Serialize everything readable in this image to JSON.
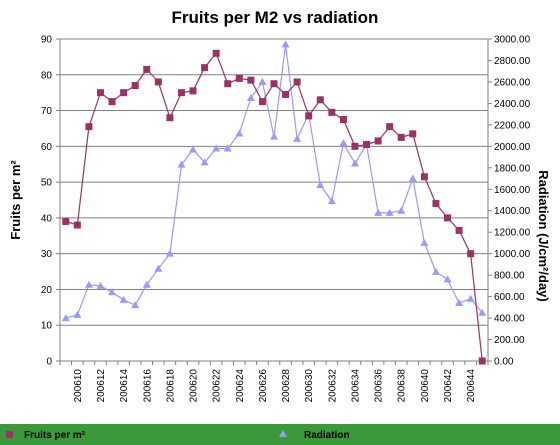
{
  "chart_data": {
    "type": "line",
    "title": "Fruits per M2 vs radiation",
    "ylabel": "Fruits per m²",
    "y2label": "Radiation (J/cm²/day)",
    "ylim": [
      0,
      90
    ],
    "y2lim": [
      0,
      3000
    ],
    "yticks": [
      "0",
      "10",
      "20",
      "30",
      "40",
      "50",
      "60",
      "70",
      "80",
      "90"
    ],
    "y2ticks": [
      "0.00",
      "200.00",
      "400.00",
      "600.00",
      "800.00",
      "1000.00",
      "1200.00",
      "1400.00",
      "1600.00",
      "1800.00",
      "2000.00",
      "2200.00",
      "2400.00",
      "2600.00",
      "2800.00",
      "3000.00"
    ],
    "x": [
      "200609",
      "200610",
      "200611",
      "200612",
      "200613",
      "200614",
      "200615",
      "200616",
      "200617",
      "200618",
      "200619",
      "200620",
      "200621",
      "200622",
      "200623",
      "200624",
      "200625",
      "200626",
      "200627",
      "200628",
      "200629",
      "200630",
      "200631",
      "200632",
      "200633",
      "200634",
      "200635",
      "200636",
      "200637",
      "200638",
      "200639",
      "200640",
      "200641",
      "200642",
      "200643",
      "200644",
      "200645"
    ],
    "xticks_shown": [
      "200610",
      "200612",
      "200614",
      "200616",
      "200618",
      "200620",
      "200622",
      "200624",
      "200626",
      "200628",
      "200630",
      "200632",
      "200634",
      "200636",
      "200638",
      "200640",
      "200642",
      "200644"
    ],
    "grid": true,
    "legend_position": "bottom",
    "series": [
      {
        "name": "Fruits per m²",
        "axis": "left",
        "color": "#993366",
        "marker": "square",
        "values": [
          39,
          38,
          65.5,
          75,
          72.5,
          75,
          77,
          81.5,
          78,
          68,
          75,
          75.5,
          82,
          86,
          77.5,
          79,
          78.5,
          72.5,
          77.5,
          74.5,
          78,
          68.5,
          73,
          69.5,
          67.5,
          60,
          60.5,
          61.5,
          65.5,
          62.5,
          63.5,
          51.5,
          44,
          40,
          36.5,
          30,
          0
        ]
      },
      {
        "name": "Radiation",
        "axis": "right",
        "color": "#9999ff",
        "marker": "triangle",
        "values": [
          400,
          430,
          710,
          700,
          640,
          570,
          520,
          710,
          860,
          1000,
          1830,
          1970,
          1850,
          1980,
          1980,
          2120,
          2450,
          2600,
          2090,
          2950,
          2070,
          2300,
          1640,
          1490,
          2030,
          1840,
          2020,
          1380,
          1380,
          1400,
          1700,
          1100,
          830,
          760,
          540,
          580,
          450
        ]
      }
    ]
  }
}
